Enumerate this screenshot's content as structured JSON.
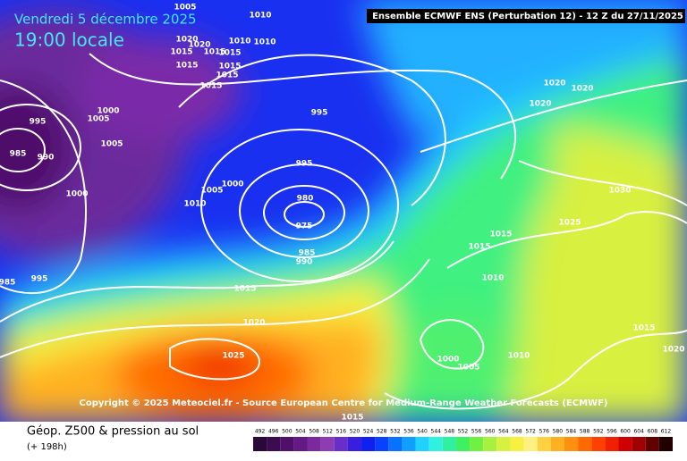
{
  "header": {
    "date": "Vendredi 5 décembre 2025",
    "time": "19:00 locale",
    "model": "Ensemble ECMWF ENS  (Perturbation 12)  -  12 Z du 27/11/2025"
  },
  "copyright": "Copyright © 2025 Meteociel.fr - Source European Centre for Medium-Range Weather Forecasts (ECMWF)",
  "footer": {
    "title": "Géop. Z500 & pression au sol",
    "lead": "(+ 198h)"
  },
  "isobar_labels": [
    1005,
    1010,
    1020,
    1020,
    1010,
    1010,
    1015,
    1015,
    1015,
    1015,
    1015,
    1015,
    1015,
    1000,
    1005,
    995,
    1005,
    985,
    990,
    1000,
    995,
    995,
    1000,
    1005,
    1010,
    980,
    975,
    985,
    990,
    985,
    995,
    1015,
    1020,
    1025,
    1020,
    1020,
    1020,
    1030,
    1025,
    1015,
    1015,
    1010,
    1015,
    1020,
    1000,
    1005,
    1010,
    1015
  ],
  "legend": {
    "labels": [
      492,
      496,
      500,
      504,
      508,
      512,
      516,
      520,
      524,
      528,
      532,
      536,
      540,
      544,
      548,
      552,
      556,
      560,
      564,
      568,
      572,
      576,
      580,
      584,
      588,
      592,
      596,
      600,
      604,
      608,
      612
    ],
    "colors": [
      "#2a0838",
      "#3c0c50",
      "#50106a",
      "#641a84",
      "#7a2a9c",
      "#8e3cb4",
      "#6a2ec8",
      "#3a1ee0",
      "#1020f0",
      "#0a40ff",
      "#0a70ff",
      "#10a0ff",
      "#20d0ff",
      "#30f0e0",
      "#30f0a0",
      "#40f060",
      "#70f040",
      "#a8f040",
      "#d8f040",
      "#f8f040",
      "#fff080",
      "#ffd040",
      "#ffb020",
      "#ff9010",
      "#ff6a00",
      "#ff4000",
      "#f02000",
      "#d00000",
      "#a00000",
      "#600000",
      "#200000"
    ]
  }
}
